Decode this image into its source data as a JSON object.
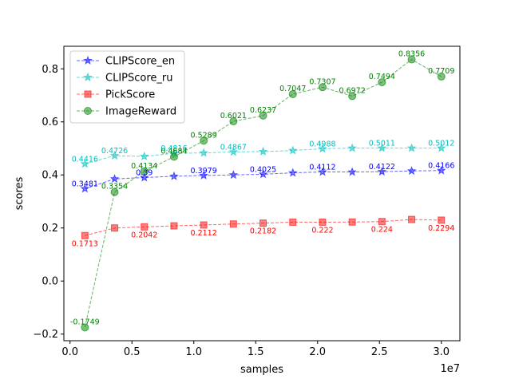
{
  "chart_data": {
    "type": "line",
    "xlabel": "samples",
    "ylabel": "scores",
    "x_offset_label": "1e7",
    "xlim": [
      -0.05,
      3.15
    ],
    "ylim": [
      -0.225,
      0.885
    ],
    "x_ticks": [
      0.0,
      0.5,
      1.0,
      1.5,
      2.0,
      2.5,
      3.0
    ],
    "x_tick_labels": [
      "0.0",
      "0.5",
      "1.0",
      "1.5",
      "2.0",
      "2.5",
      "3.0"
    ],
    "y_ticks": [
      -0.2,
      0.0,
      0.2,
      0.4,
      0.6,
      0.8
    ],
    "y_tick_labels": [
      "−0.2",
      "0.0",
      "0.2",
      "0.4",
      "0.6",
      "0.8"
    ],
    "x": [
      0.12,
      0.36,
      0.6,
      0.84,
      1.08,
      1.32,
      1.56,
      1.8,
      2.04,
      2.28,
      2.52,
      2.76,
      3.0
    ],
    "grid": false,
    "legend_position": "top-left",
    "series": [
      {
        "name": "CLIPScore_en",
        "color": "#0000ff",
        "marker": "star",
        "values": [
          0.3481,
          0.385,
          0.39,
          0.395,
          0.3979,
          0.4,
          0.4025,
          0.408,
          0.4112,
          0.411,
          0.4122,
          0.415,
          0.4166
        ],
        "labels": [
          "0.3481",
          "",
          "0.39",
          "",
          "0.3979",
          "",
          "0.4025",
          "",
          "0.4112",
          "",
          "0.4122",
          "",
          "0.4166"
        ]
      },
      {
        "name": "CLIPScore_ru",
        "color": "#00bfbf",
        "marker": "star",
        "values": [
          0.4416,
          0.4726,
          0.47,
          0.4816,
          0.483,
          0.4867,
          0.488,
          0.492,
          0.4988,
          0.5011,
          0.5011,
          0.5012,
          0.5012
        ],
        "labels": [
          "0.4416",
          "0.4726",
          "",
          "0.4816",
          "",
          "0.4867",
          "",
          "",
          "0.4988",
          "",
          "0.5011",
          "",
          "0.5012"
        ]
      },
      {
        "name": "PickScore",
        "color": "#ff0000",
        "marker": "square",
        "values": [
          0.1713,
          0.2,
          0.2042,
          0.208,
          0.2112,
          0.215,
          0.2182,
          0.222,
          0.222,
          0.2225,
          0.224,
          0.232,
          0.2294
        ],
        "labels": [
          "0.1713",
          "",
          "0.2042",
          "",
          "0.2112",
          "",
          "0.2182",
          "",
          "0.222",
          "",
          "0.224",
          "",
          "0.2294"
        ]
      },
      {
        "name": "ImageReward",
        "color": "#008000",
        "marker": "circle",
        "values": [
          -0.1749,
          0.3354,
          0.4134,
          0.4684,
          0.5289,
          0.6021,
          0.6237,
          0.7047,
          0.7307,
          0.6972,
          0.7494,
          0.8356,
          0.7709
        ],
        "labels": [
          "-0.1749",
          "0.3354",
          "0.4134",
          "0.4684",
          "0.5289",
          "0.6021",
          "0.6237",
          "0.7047",
          "0.7307",
          "0.6972",
          "0.7494",
          "0.8356",
          "0.7709"
        ]
      }
    ]
  }
}
